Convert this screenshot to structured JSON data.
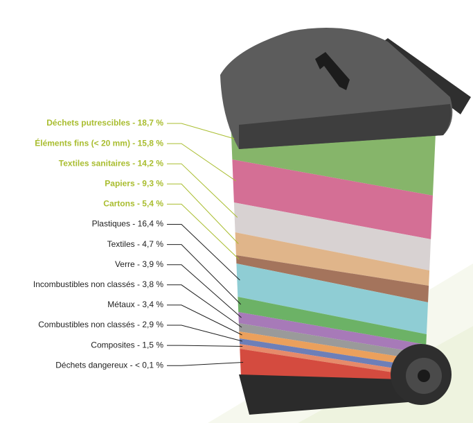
{
  "items": [
    {
      "label": "Déchets putrescibles - 18,7 %",
      "text_color": "#a9bd2f",
      "layer_color": "#86b56a"
    },
    {
      "label": "Éléments fins (< 20 mm) - 15,8 %",
      "text_color": "#a9bd2f",
      "layer_color": "#d46f95"
    },
    {
      "label": "Textiles sanitaires - 14,2 %",
      "text_color": "#a9bd2f",
      "layer_color": "#d8d2d2"
    },
    {
      "label": "Papiers -  9,3 %",
      "text_color": "#a9bd2f",
      "layer_color": "#e0b58a"
    },
    {
      "label": "Cartons - 5,4 %",
      "text_color": "#a9bd2f",
      "layer_color": "#a4745c"
    },
    {
      "label": "Plastiques - 16,4 %",
      "text_color": "#1e1e1e",
      "layer_color": "#8fcdd4"
    },
    {
      "label": "Textiles - 4,7 %",
      "text_color": "#1e1e1e",
      "layer_color": "#6cb266"
    },
    {
      "label": "Verre - 3,9 %",
      "text_color": "#1e1e1e",
      "layer_color": "#a77ab8"
    },
    {
      "label": "Incombustibles non classés - 3,8 %",
      "text_color": "#1e1e1e",
      "layer_color": "#9a9a9a"
    },
    {
      "label": "Métaux - 3,4 %",
      "text_color": "#1e1e1e",
      "layer_color": "#eba05c"
    },
    {
      "label": "Combustibles non classés - 2,9 %",
      "text_color": "#1e1e1e",
      "layer_color": "#6d7fb8"
    },
    {
      "label": "Composites -  1,5 %",
      "text_color": "#1e1e1e",
      "layer_color": "#e68a6a"
    },
    {
      "label": "Déchets dangereux - < 0,1 %",
      "text_color": "#1e1e1e",
      "layer_color": "#d44b3f"
    }
  ]
}
